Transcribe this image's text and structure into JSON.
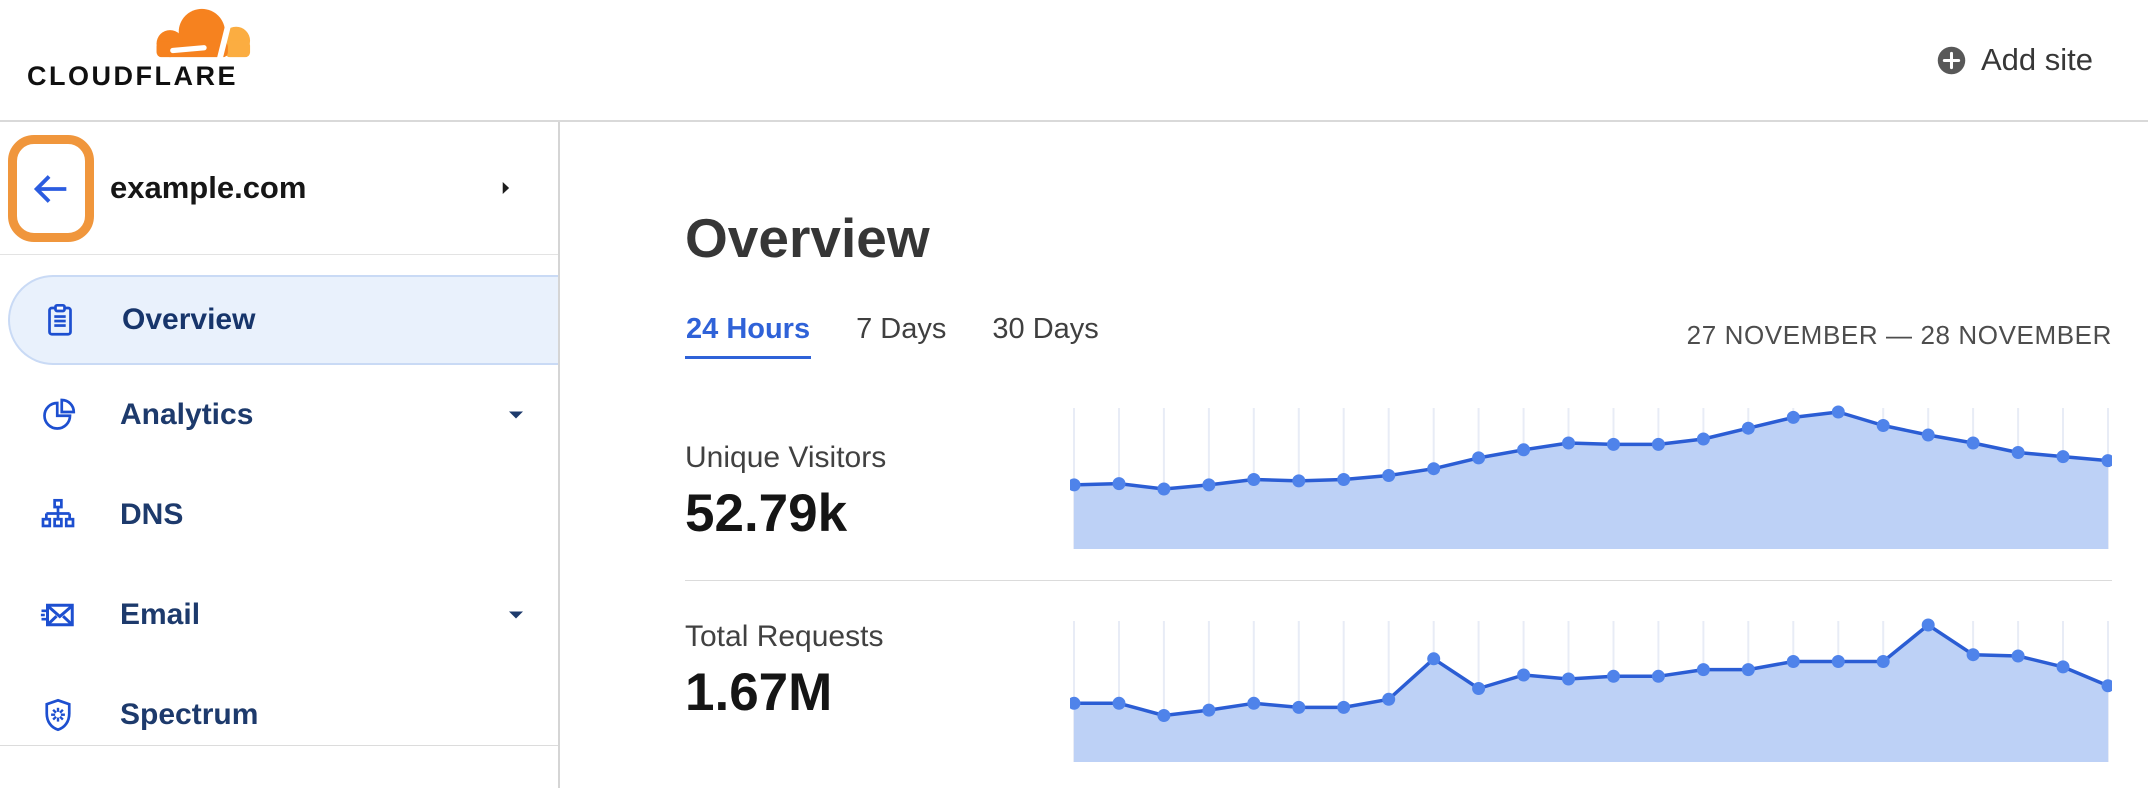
{
  "header": {
    "logo_text": "CLOUDFLARE",
    "add_site_label": "Add site"
  },
  "sidebar": {
    "zone_name": "example.com",
    "items": [
      {
        "label": "Overview",
        "icon": "clipboard-icon",
        "selected": true,
        "expandable": false
      },
      {
        "label": "Analytics",
        "icon": "pie-chart-icon",
        "selected": false,
        "expandable": true
      },
      {
        "label": "DNS",
        "icon": "sitemap-icon",
        "selected": false,
        "expandable": false
      },
      {
        "label": "Email",
        "icon": "email-icon",
        "selected": false,
        "expandable": true
      },
      {
        "label": "Spectrum",
        "icon": "shield-icon",
        "selected": false,
        "expandable": false
      }
    ]
  },
  "main": {
    "title": "Overview",
    "tabs": [
      {
        "label": "24 Hours",
        "active": true
      },
      {
        "label": "7 Days",
        "active": false
      },
      {
        "label": "30 Days",
        "active": false
      }
    ],
    "date_range": "27 NOVEMBER — 28 NOVEMBER",
    "stats": [
      {
        "label": "Unique Visitors",
        "value": "52.79k"
      },
      {
        "label": "Total Requests",
        "value": "1.67M"
      }
    ]
  },
  "chart_data": [
    {
      "type": "area",
      "title": "Unique Visitors",
      "total_label": "52.79k",
      "x": [
        0,
        1,
        2,
        3,
        4,
        5,
        6,
        7,
        8,
        9,
        10,
        11,
        12,
        13,
        14,
        15,
        16,
        17,
        18,
        19,
        20,
        21,
        22,
        23
      ],
      "x_unit": "hourly points, 27 November – 28 November",
      "values_relative_pct": [
        46,
        47,
        43,
        46,
        50,
        49,
        50,
        53,
        58,
        66,
        72,
        77,
        76,
        76,
        80,
        88,
        96,
        100,
        90,
        83,
        77,
        70,
        67,
        64
      ],
      "ylim": [
        0,
        100
      ],
      "grid": "vertical-light",
      "legend": "none",
      "axis_labels": "none shown"
    },
    {
      "type": "area",
      "title": "Total Requests",
      "total_label": "1.67M",
      "x": [
        0,
        1,
        2,
        3,
        4,
        5,
        6,
        7,
        8,
        9,
        10,
        11,
        12,
        13,
        14,
        15,
        16,
        17,
        18,
        19,
        20,
        21,
        22,
        23
      ],
      "x_unit": "hourly points, 27 November – 28 November",
      "values_relative_pct": [
        42,
        42,
        33,
        37,
        42,
        39,
        39,
        45,
        75,
        53,
        63,
        60,
        62,
        62,
        67,
        67,
        73,
        73,
        73,
        100,
        78,
        77,
        69,
        55
      ],
      "ylim": [
        0,
        100
      ],
      "grid": "vertical-light",
      "legend": "none",
      "axis_labels": "none shown"
    }
  ],
  "colors": {
    "brand_orange": "#F6821F",
    "brand_orange_light": "#FBAD41",
    "highlight_ring": "#F0963C",
    "accent_blue": "#2f62d8",
    "icon_blue": "#1d4fd0",
    "nav_text": "#1d3a6c",
    "selected_bg": "#e9f1fc",
    "chart_line": "#2b5dd4",
    "chart_fill": "#bdd1f6",
    "chart_dot": "#4f83ea",
    "chart_grid": "#e8ecf6"
  }
}
